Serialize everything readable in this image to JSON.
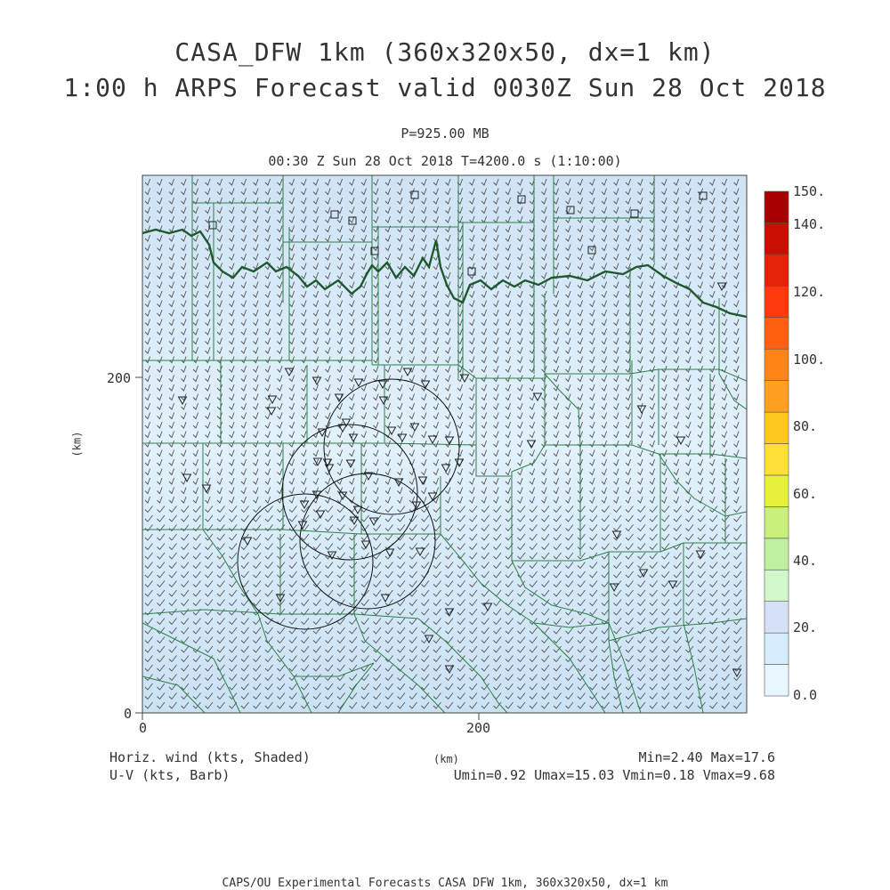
{
  "header": {
    "title_line1": "CASA_DFW 1km (360x320x50, dx=1 km)",
    "title_line2": "1:00 h ARPS Forecast valid 0030Z Sun 28 Oct 2018",
    "pressure_level": "P=925.00 MB",
    "time_info": "00:30 Z Sun 28 Oct 2018   T=4200.0 s (1:10:00)"
  },
  "axes": {
    "x_label": "(km)",
    "y_label": "(km)",
    "x_ticks": [
      "0",
      "200"
    ],
    "y_ticks": [
      "0",
      "200"
    ]
  },
  "colorbar": {
    "labels": [
      "0.0",
      "20.",
      "40.",
      "60.",
      "80.",
      "100.",
      "120.",
      "140.",
      "150."
    ],
    "colors": [
      "#e8f6ff",
      "#d4ecfb",
      "#d6e0f8",
      "#d2f7c8",
      "#bff0a0",
      "#c9f07a",
      "#e6f23c",
      "#ffe036",
      "#ffc820",
      "#ffa020",
      "#ff8418",
      "#ff6010",
      "#ff3a0a",
      "#e42208",
      "#c81000",
      "#a80000"
    ]
  },
  "footer": {
    "field1": "Horiz. wind (kts, Shaded)",
    "field2": "U-V (kts, Barb)",
    "x_unit": "(km)",
    "minmax": "Min=2.40 Max=17.6",
    "uv_stats": "Umin=0.92 Umax=15.03 Vmin=0.18 Vmax=9.68",
    "credit": "CAPS/OU Experimental Forecasts  CASA DFW 1km, 360x320x50, dx=1 km"
  },
  "map": {
    "plot_fill": "#d2e7f7",
    "county_color": "#2f7f45",
    "state_border_color": "#1f5a2e",
    "radar_ring_color": "#111111"
  }
}
